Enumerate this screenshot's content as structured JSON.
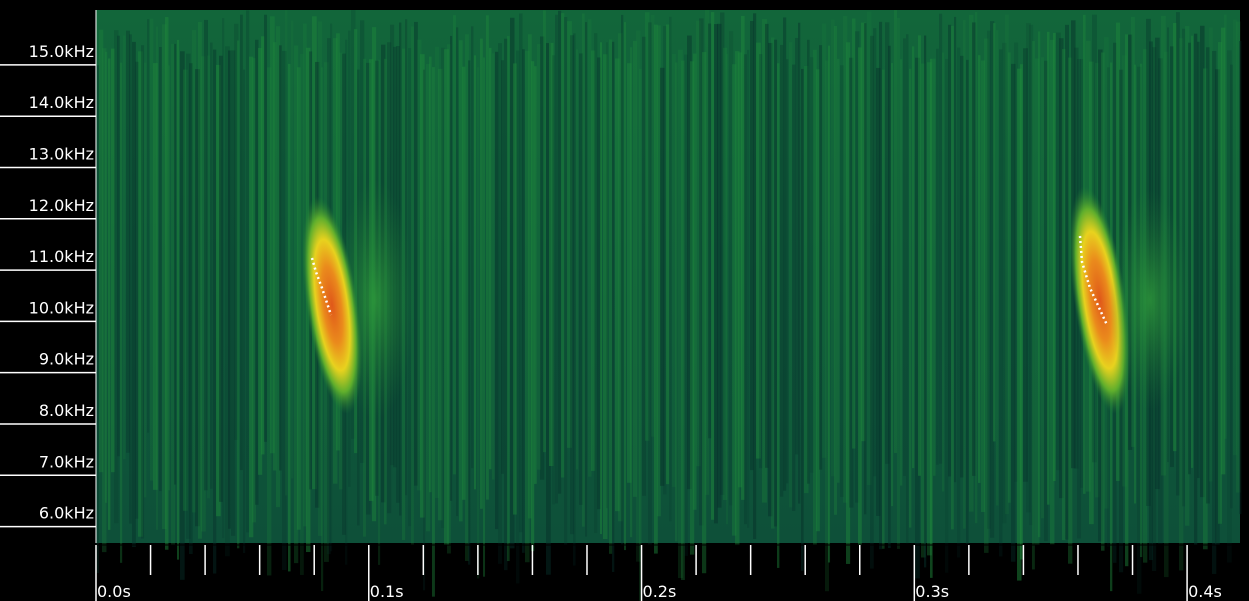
{
  "chart_data": {
    "type": "spectrogram",
    "xlim": [
      0,
      0.4194
    ],
    "xticks": [
      {
        "value": 0,
        "label": "0.0s"
      },
      {
        "value": 0.1,
        "label": "0.1s"
      },
      {
        "value": 0.2,
        "label": "0.2s"
      },
      {
        "value": 0.3,
        "label": "0.3s"
      },
      {
        "value": 0.4,
        "label": "0.4s"
      }
    ],
    "xminorticks": [
      0.02,
      0.04,
      0.06,
      0.08,
      0.12,
      0.14,
      0.16,
      0.18,
      0.22,
      0.24,
      0.26,
      0.28,
      0.32,
      0.34,
      0.36,
      0.38
    ],
    "ylim": [
      5.68,
      16.07
    ],
    "yticks": [
      {
        "value": 6,
        "label": "6.0kHz"
      },
      {
        "value": 7,
        "label": "7.0kHz"
      },
      {
        "value": 8,
        "label": "8.0kHz"
      },
      {
        "value": 9,
        "label": "9.0kHz"
      },
      {
        "value": 10,
        "label": "10.0kHz"
      },
      {
        "value": 11,
        "label": "11.0kHz"
      },
      {
        "value": 12,
        "label": "12.0kHz"
      },
      {
        "value": 13,
        "label": "13.0kHz"
      },
      {
        "value": 14,
        "label": "14.0kHz"
      },
      {
        "value": 15,
        "label": "15.0kHz"
      }
    ]
  }
}
